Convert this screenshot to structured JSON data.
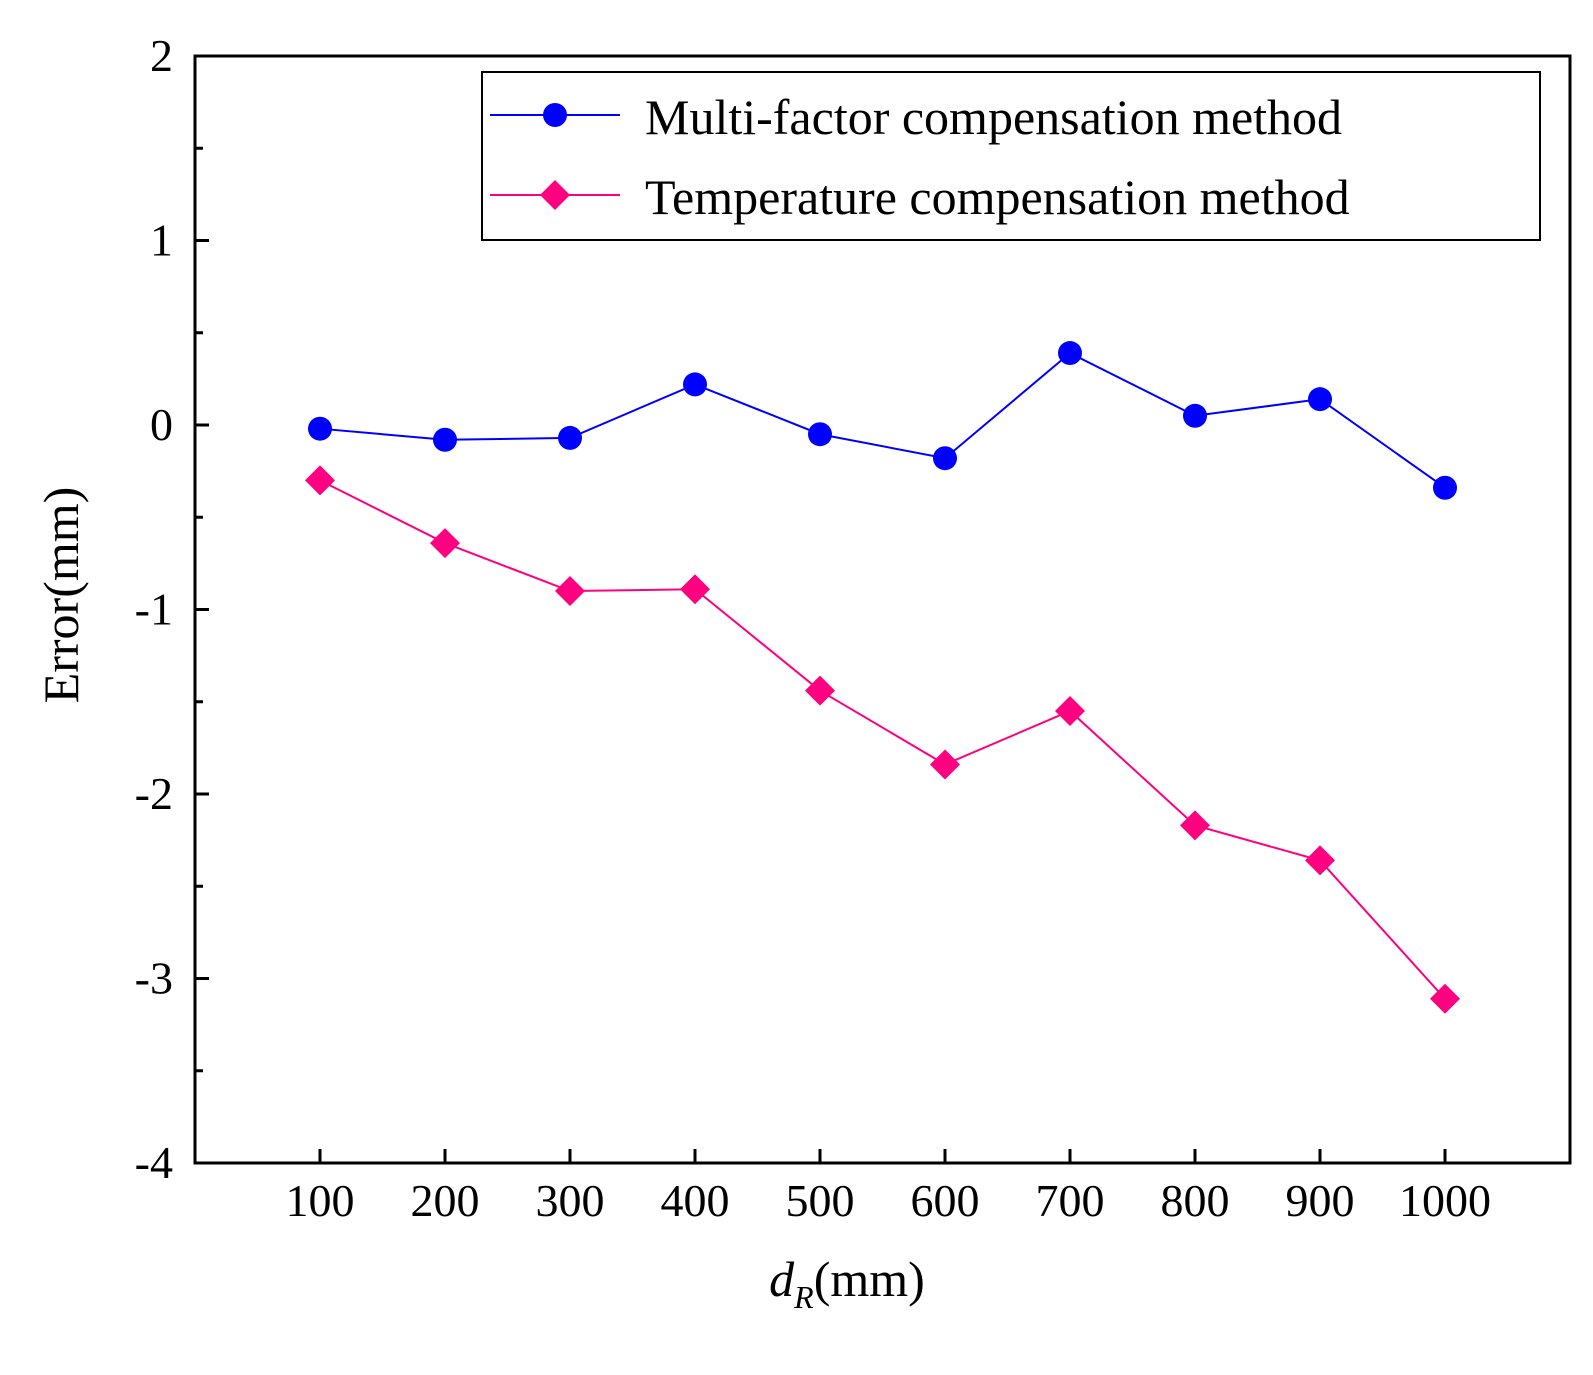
{
  "chart_data": {
    "type": "line",
    "title": "",
    "xlabel_main": "d",
    "xlabel_sub": "R",
    "xlabel_unit": "(mm)",
    "ylabel": "Error(mm)",
    "x": [
      100,
      200,
      300,
      400,
      500,
      600,
      700,
      800,
      900,
      1000
    ],
    "x_tick_labels": [
      "100",
      "200",
      "300",
      "400",
      "500",
      "600",
      "700",
      "800",
      "900",
      "1000"
    ],
    "xlim": [
      0,
      1100
    ],
    "ylim": [
      -4,
      2
    ],
    "y_ticks": [
      2,
      1,
      0,
      -1,
      -2,
      -3,
      -4
    ],
    "y_tick_labels": [
      "2",
      "1",
      "0",
      "-1",
      "-2",
      "-3",
      "-4"
    ],
    "grid": false,
    "legend_position": "top-right",
    "series": [
      {
        "name": "Multi-factor compensation method",
        "color": "#0000ff",
        "marker": "circle",
        "values": [
          -0.02,
          -0.08,
          -0.07,
          0.22,
          -0.05,
          -0.18,
          0.39,
          0.05,
          0.14,
          -0.34
        ]
      },
      {
        "name": "Temperature compensation method",
        "color": "#ff0080",
        "marker": "diamond",
        "values": [
          -0.3,
          -0.64,
          -0.9,
          -0.89,
          -1.44,
          -1.84,
          -1.55,
          -2.17,
          -2.36,
          -3.11
        ]
      }
    ]
  }
}
